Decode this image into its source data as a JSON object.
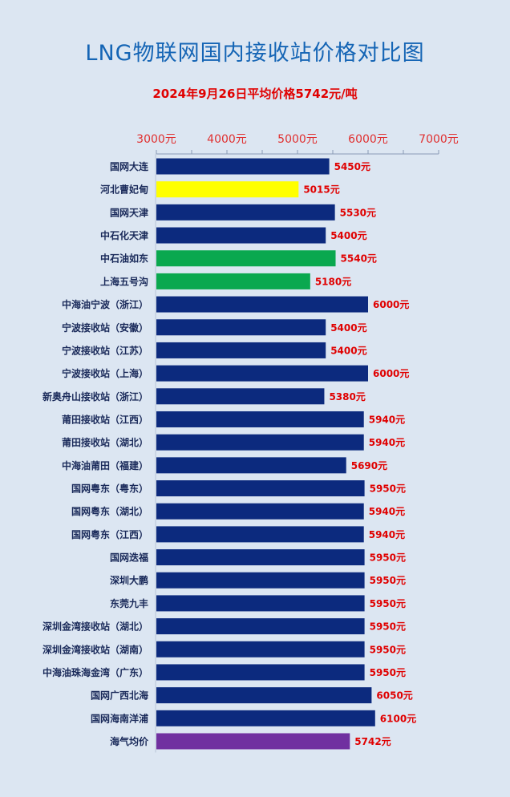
{
  "title": "LNG物联网国内接收站价格对比图",
  "subtitle": "2024年9月26日平均价格5742元/吨",
  "chart_data": {
    "type": "bar",
    "orientation": "horizontal",
    "title": "LNG物联网国内接收站价格对比图",
    "subtitle": "2024年9月26日平均价格5742元/吨",
    "xlim": [
      3000,
      7000
    ],
    "x_ticks": [
      3000,
      4000,
      5000,
      6000,
      7000
    ],
    "tick_suffix": "元",
    "value_suffix": "元",
    "tick_color": "#e03030",
    "value_label_color": "#e00000",
    "categories": [
      "国网大连",
      "河北曹妃甸",
      "国网天津",
      "中石化天津",
      "中石油如东",
      "上海五号沟",
      "中海油宁波（浙江）",
      "宁波接收站（安徽）",
      "宁波接收站（江苏）",
      "宁波接收站（上海）",
      "新奥舟山接收站（浙江）",
      "莆田接收站（江西）",
      "莆田接收站（湖北）",
      "中海油莆田（福建）",
      "国网粤东（粤东）",
      "国网粤东（湖北）",
      "国网粤东（江西）",
      "国网迭福",
      "深圳大鹏",
      "东莞九丰",
      "深圳金湾接收站（湖北）",
      "深圳金湾接收站（湖南）",
      "中海油珠海金湾（广东）",
      "国网广西北海",
      "国网海南洋浦",
      "海气均价"
    ],
    "values": [
      5450,
      5015,
      5530,
      5400,
      5540,
      5180,
      6000,
      5400,
      5400,
      6000,
      5380,
      5940,
      5940,
      5690,
      5950,
      5940,
      5940,
      5950,
      5950,
      5950,
      5950,
      5950,
      5950,
      6050,
      6100,
      5742
    ],
    "colors": [
      "#0c2a7e",
      "#ffff00",
      "#0c2a7e",
      "#0c2a7e",
      "#0aa84f",
      "#0aa84f",
      "#0c2a7e",
      "#0c2a7e",
      "#0c2a7e",
      "#0c2a7e",
      "#0c2a7e",
      "#0c2a7e",
      "#0c2a7e",
      "#0c2a7e",
      "#0c2a7e",
      "#0c2a7e",
      "#0c2a7e",
      "#0c2a7e",
      "#0c2a7e",
      "#0c2a7e",
      "#0c2a7e",
      "#0c2a7e",
      "#0c2a7e",
      "#0c2a7e",
      "#0c2a7e",
      "#7030a0"
    ]
  }
}
